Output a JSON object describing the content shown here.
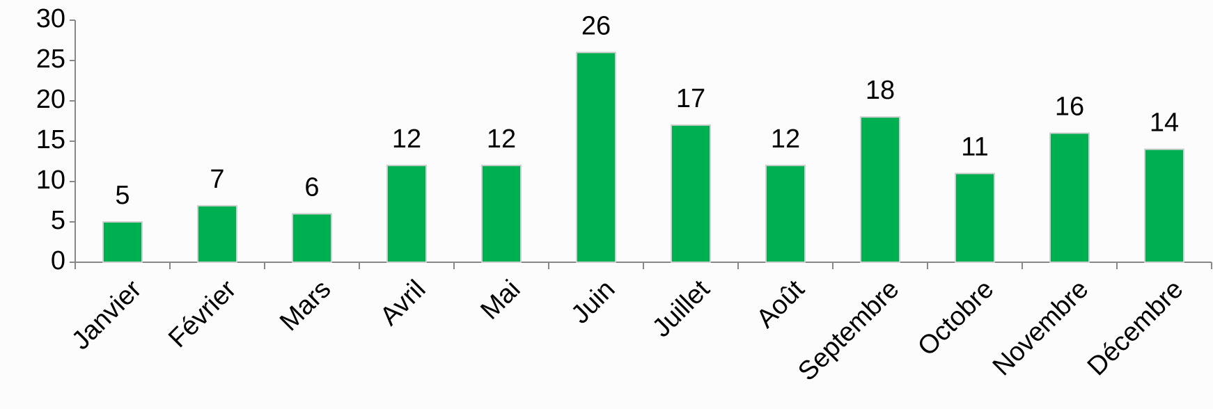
{
  "chart_data": {
    "type": "bar",
    "categories": [
      "Janvier",
      "Février",
      "Mars",
      "Avril",
      "Mai",
      "Juin",
      "Juillet",
      "Août",
      "Septembre",
      "Octobre",
      "Novembre",
      "Décembre"
    ],
    "values": [
      5,
      7,
      6,
      12,
      12,
      26,
      17,
      12,
      18,
      11,
      16,
      14
    ],
    "color": "#00b050",
    "ylim": [
      0,
      30
    ],
    "yticks": [
      0,
      5,
      10,
      15,
      20,
      25,
      30
    ],
    "grid": false
  }
}
